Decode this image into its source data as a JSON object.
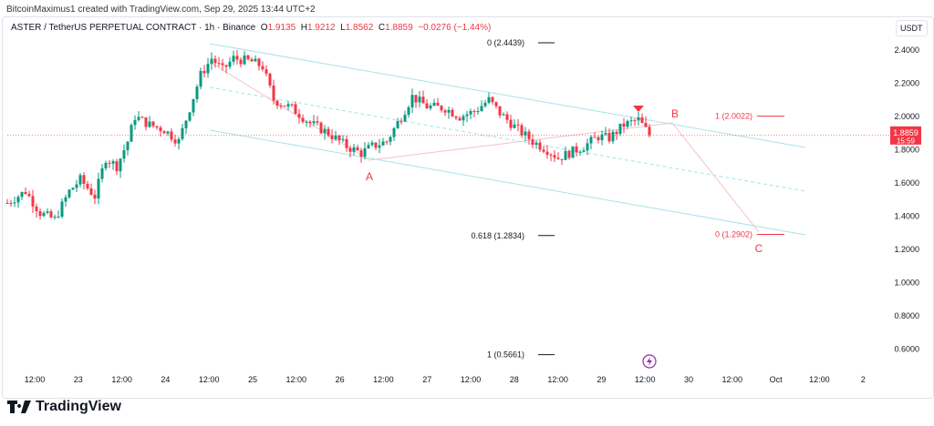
{
  "credit": "BitcoinMaximus1 created with TradingView.com, Sep 29, 2025 13:44 UTC+2",
  "legend": {
    "symbol": "ASTER / TetherUS PERPETUAL CONTRACT · 1h · Binance",
    "o_label": "O",
    "o": "1.9135",
    "h_label": "H",
    "h": "1.9212",
    "l_label": "L",
    "l": "1.8562",
    "c_label": "C",
    "c": "1.8859",
    "change": "−0.0276 (−1.44%)"
  },
  "currency": "USDT",
  "last_price": "1.8859",
  "countdown": "15:59",
  "brand": "TradingView",
  "colors": {
    "up": "#089981",
    "down": "#f23645",
    "channel": "#a6e3e9",
    "annot": "#f23645"
  },
  "chart_data": {
    "type": "candlestick",
    "title": "ASTER / TetherUS PERPETUAL CONTRACT · 1h · Binance",
    "ylim": [
      0.5,
      2.55
    ],
    "y_ticks": [
      "2.4000",
      "2.2000",
      "2.0000",
      "1.8000",
      "1.6000",
      "1.4000",
      "1.2000",
      "1.0000",
      "0.8000",
      "0.6000"
    ],
    "x_ticks": [
      "12:00",
      "23",
      "12:00",
      "24",
      "12:00",
      "25",
      "12:00",
      "26",
      "12:00",
      "27",
      "12:00",
      "28",
      "12:00",
      "29",
      "12:00",
      "30",
      "12:00",
      "Oct",
      "12:00",
      "2"
    ],
    "x_unit": "hours since Sep 22 09:30",
    "close_path": [
      [
        0,
        1.48
      ],
      [
        5,
        1.55
      ],
      [
        9,
        1.42
      ],
      [
        13,
        1.38
      ],
      [
        17,
        1.55
      ],
      [
        20,
        1.62
      ],
      [
        24,
        1.52
      ],
      [
        27,
        1.75
      ],
      [
        30,
        1.7
      ],
      [
        33,
        1.85
      ],
      [
        35,
        2.0
      ],
      [
        39,
        1.95
      ],
      [
        43,
        1.92
      ],
      [
        47,
        1.85
      ],
      [
        50,
        2.05
      ],
      [
        53,
        2.25
      ],
      [
        56,
        2.35
      ],
      [
        59,
        2.28
      ],
      [
        62,
        2.35
      ],
      [
        67,
        2.33
      ],
      [
        70,
        2.3
      ],
      [
        73,
        2.1
      ],
      [
        78,
        2.05
      ],
      [
        83,
        1.96
      ],
      [
        88,
        1.9
      ],
      [
        93,
        1.82
      ],
      [
        97,
        1.78
      ],
      [
        100,
        1.82
      ],
      [
        104,
        1.85
      ],
      [
        108,
        2.0
      ],
      [
        111,
        2.12
      ],
      [
        115,
        2.06
      ],
      [
        120,
        2.05
      ],
      [
        124,
        2.0
      ],
      [
        128,
        2.03
      ],
      [
        132,
        2.1
      ],
      [
        135,
        2.02
      ],
      [
        140,
        1.92
      ],
      [
        144,
        1.85
      ],
      [
        148,
        1.8
      ],
      [
        151,
        1.75
      ],
      [
        154,
        1.78
      ],
      [
        158,
        1.82
      ],
      [
        162,
        1.88
      ],
      [
        165,
        1.87
      ],
      [
        169,
        1.95
      ],
      [
        173,
        1.98
      ],
      [
        176,
        1.89
      ]
    ],
    "fib_levels": [
      {
        "label": "0 (2.4439)",
        "price": 2.4439
      },
      {
        "label": "0.618 (1.2834)",
        "price": 1.2834
      },
      {
        "label": "1 (0.5661)",
        "price": 0.5661
      }
    ],
    "fib_target": [
      {
        "label": "1 (2.0022)",
        "price": 2.0022
      },
      {
        "label": "0 (1.2902)",
        "price": 1.2902
      }
    ],
    "wave_labels": [
      "A",
      "B",
      "C"
    ]
  }
}
